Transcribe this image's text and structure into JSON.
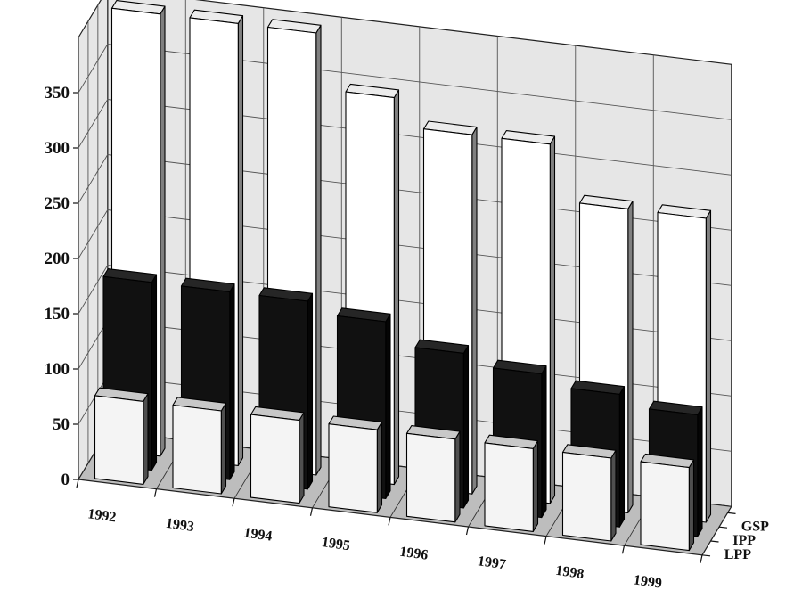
{
  "chart_data": {
    "type": "bar",
    "projection": "3d",
    "categories": [
      "1992",
      "1993",
      "1994",
      "1995",
      "1996",
      "1997",
      "1998",
      "1999"
    ],
    "depth_categories": [
      "LPP",
      "IPP",
      "GSP"
    ],
    "series": [
      {
        "name": "LPP",
        "values": [
          75,
          75,
          75,
          75,
          75,
          75,
          75,
          75
        ]
      },
      {
        "name": "IPP",
        "values": [
          170,
          170,
          170,
          160,
          140,
          130,
          120,
          110
        ]
      },
      {
        "name": "GSP",
        "values": [
          400,
          400,
          400,
          350,
          325,
          325,
          275,
          275
        ]
      }
    ],
    "yticks": [
      0,
      50,
      100,
      150,
      200,
      250,
      300,
      350
    ],
    "ylim": [
      0,
      400
    ],
    "grid": true,
    "title": "",
    "xlabel": "",
    "ylabel": "",
    "colors": {
      "LPP": {
        "front": "#f4f4f4",
        "side": "#4f4f4f",
        "top": "#c8c8c8"
      },
      "IPP": {
        "front": "#111111",
        "side": "#050505",
        "top": "#262626"
      },
      "GSP": {
        "front": "#ffffff",
        "side": "#808080",
        "top": "#ececec"
      },
      "back_wall": "#e6e6e6",
      "floor": "#bdbdbd",
      "grid": "#555555"
    }
  }
}
